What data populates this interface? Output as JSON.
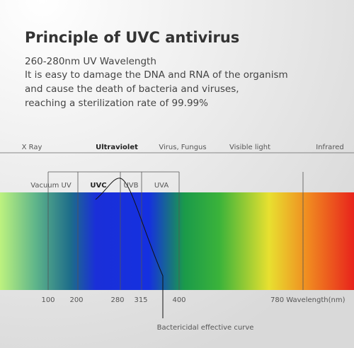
{
  "header": {
    "title": "Principle of UVC antivirus",
    "lines": [
      "260-280nm UV Wavelength",
      "It is easy to damage the DNA and RNA of the organism",
      "and cause the death of bacteria and viruses,",
      "reaching a sterilization rate of 99.99%"
    ]
  },
  "spectrum": {
    "regions": [
      "X Ray",
      "Ultraviolet",
      "Virus, Fungus",
      "Visible light",
      "Infrared"
    ],
    "uv_bands": [
      "Vacuum UV",
      "UVC",
      "UVB",
      "UVA"
    ],
    "wavelengths": [
      "100",
      "200",
      "280",
      "315",
      "400",
      "780 Wavelength(nm)"
    ],
    "curve_label": "Bactericidal effective curve"
  }
}
